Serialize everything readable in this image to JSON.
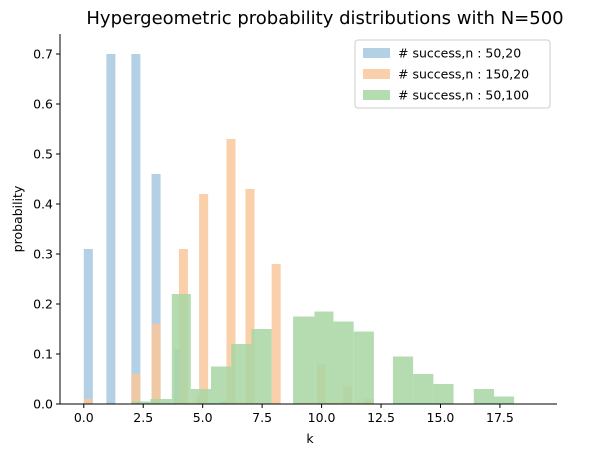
{
  "chart_data": {
    "type": "bar",
    "title": "Hypergeometric probability distributions with N=500",
    "xlabel": "k",
    "ylabel": "probability",
    "xlim": [
      -1.0,
      19.9
    ],
    "ylim": [
      0,
      0.74
    ],
    "xticks": [
      0.0,
      2.5,
      5.0,
      7.5,
      10.0,
      12.5,
      15.0,
      17.5
    ],
    "xtick_labels": [
      "0.0",
      "2.5",
      "5.0",
      "7.5",
      "10.0",
      "12.5",
      "15.0",
      "17.5"
    ],
    "yticks": [
      0.0,
      0.1,
      0.2,
      0.3,
      0.4,
      0.5,
      0.6,
      0.7
    ],
    "ytick_labels": [
      "0.0",
      "0.1",
      "0.2",
      "0.3",
      "0.4",
      "0.5",
      "0.6",
      "0.7"
    ],
    "legend_position": "top-right",
    "series": [
      {
        "name": "# success,n : 50,20",
        "color": "#a6c8e0",
        "bins": [
          {
            "x0": 0.0,
            "x1": 0.38,
            "value": 0.31
          },
          {
            "x0": 0.95,
            "x1": 1.33,
            "value": 0.7
          },
          {
            "x0": 2.0,
            "x1": 2.38,
            "value": 0.7
          },
          {
            "x0": 2.85,
            "x1": 3.23,
            "value": 0.46
          },
          {
            "x0": 3.8,
            "x1": 4.18,
            "value": 0.11
          },
          {
            "x0": 4.75,
            "x1": 5.13,
            "value": 0.015
          },
          {
            "x0": 5.7,
            "x1": 6.08,
            "value": 0.005
          }
        ]
      },
      {
        "name": "# success,n : 150,20",
        "color": "#f9c89b",
        "bins": [
          {
            "x0": 0.0,
            "x1": 0.38,
            "value": 0.01
          },
          {
            "x0": 2.0,
            "x1": 2.38,
            "value": 0.06
          },
          {
            "x0": 2.85,
            "x1": 3.23,
            "value": 0.16
          },
          {
            "x0": 4.0,
            "x1": 4.38,
            "value": 0.31
          },
          {
            "x0": 4.85,
            "x1": 5.23,
            "value": 0.42
          },
          {
            "x0": 6.0,
            "x1": 6.38,
            "value": 0.53
          },
          {
            "x0": 6.8,
            "x1": 7.18,
            "value": 0.43
          },
          {
            "x0": 7.9,
            "x1": 8.28,
            "value": 0.28
          },
          {
            "x0": 9.8,
            "x1": 10.18,
            "value": 0.08
          },
          {
            "x0": 10.9,
            "x1": 11.28,
            "value": 0.035
          },
          {
            "x0": 11.8,
            "x1": 12.18,
            "value": 0.01
          }
        ]
      },
      {
        "name": "# success,n : 50,100",
        "color": "#a8d6a3",
        "bins": [
          {
            "x0": 2.0,
            "x1": 2.8,
            "value": 0.005
          },
          {
            "x0": 2.8,
            "x1": 3.7,
            "value": 0.01
          },
          {
            "x0": 3.7,
            "x1": 4.5,
            "value": 0.22
          },
          {
            "x0": 4.5,
            "x1": 5.35,
            "value": 0.03
          },
          {
            "x0": 5.35,
            "x1": 6.2,
            "value": 0.075
          },
          {
            "x0": 6.2,
            "x1": 7.05,
            "value": 0.12
          },
          {
            "x0": 7.05,
            "x1": 7.9,
            "value": 0.15
          },
          {
            "x0": 8.8,
            "x1": 9.7,
            "value": 0.175
          },
          {
            "x0": 9.7,
            "x1": 10.5,
            "value": 0.185
          },
          {
            "x0": 10.5,
            "x1": 11.35,
            "value": 0.165
          },
          {
            "x0": 11.35,
            "x1": 12.2,
            "value": 0.145
          },
          {
            "x0": 13.0,
            "x1": 13.85,
            "value": 0.095
          },
          {
            "x0": 13.85,
            "x1": 14.7,
            "value": 0.06
          },
          {
            "x0": 14.7,
            "x1": 15.55,
            "value": 0.04
          },
          {
            "x0": 16.4,
            "x1": 17.25,
            "value": 0.03
          },
          {
            "x0": 17.25,
            "x1": 18.1,
            "value": 0.015
          }
        ]
      }
    ]
  }
}
